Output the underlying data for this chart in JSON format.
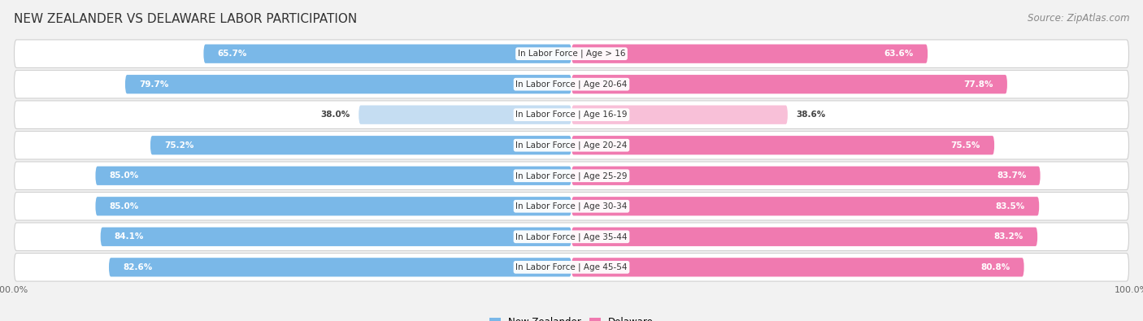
{
  "title": "NEW ZEALANDER VS DELAWARE LABOR PARTICIPATION",
  "source": "Source: ZipAtlas.com",
  "categories": [
    "In Labor Force | Age > 16",
    "In Labor Force | Age 20-64",
    "In Labor Force | Age 16-19",
    "In Labor Force | Age 20-24",
    "In Labor Force | Age 25-29",
    "In Labor Force | Age 30-34",
    "In Labor Force | Age 35-44",
    "In Labor Force | Age 45-54"
  ],
  "nz_values": [
    65.7,
    79.7,
    38.0,
    75.2,
    85.0,
    85.0,
    84.1,
    82.6
  ],
  "de_values": [
    63.6,
    77.8,
    38.6,
    75.5,
    83.7,
    83.5,
    83.2,
    80.8
  ],
  "nz_color_dark": "#7ab8e8",
  "nz_color_light": "#c5ddf2",
  "de_color_dark": "#f07ab0",
  "de_color_light": "#f8c0d8",
  "bg_color": "#f2f2f2",
  "row_bg_light": "#f8f8f8",
  "row_bg_dark": "#e8e8e8",
  "title_fontsize": 11,
  "source_fontsize": 8.5,
  "label_fontsize": 7.5,
  "cat_fontsize": 7.5,
  "legend_fontsize": 8.5,
  "max_val": 100.0,
  "bar_height": 0.62
}
